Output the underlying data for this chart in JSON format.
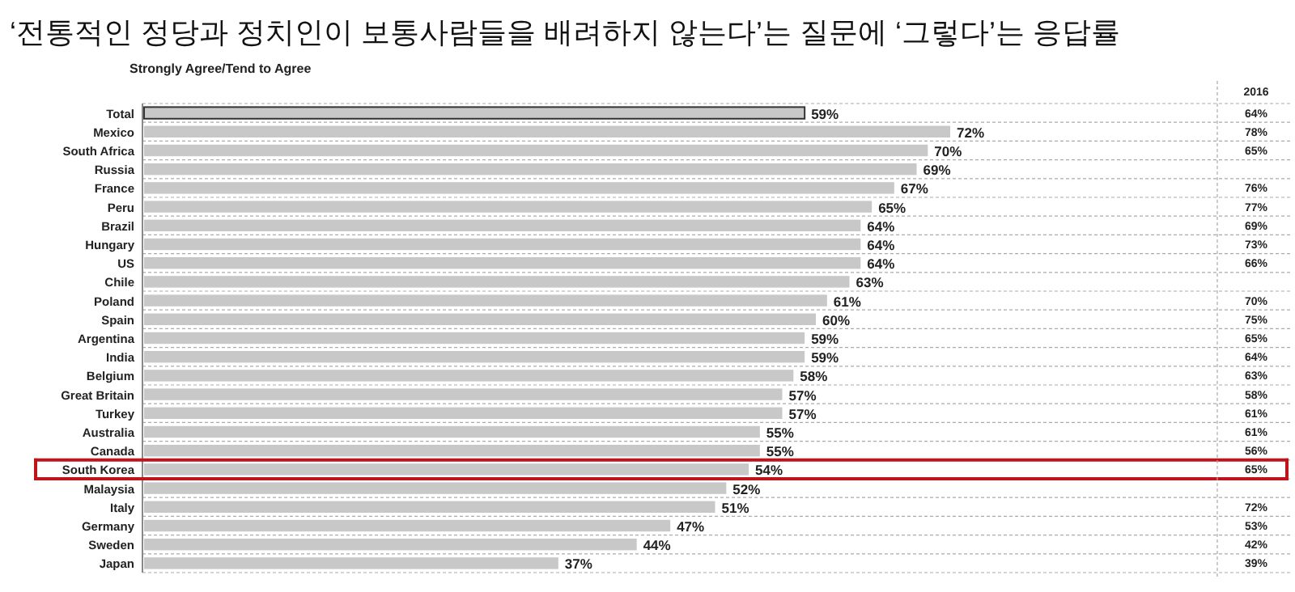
{
  "chart_data": {
    "type": "bar",
    "orientation": "horizontal",
    "title": "‘전통적인 정당과 정치인이 보통사람들을 배려하지 않는다’는 질문에 ‘그렇다’는 응답률",
    "subtitle": "Strongly Agree/Tend to Agree",
    "categories": [
      "Total",
      "Mexico",
      "South Africa",
      "Russia",
      "France",
      "Peru",
      "Brazil",
      "Hungary",
      "US",
      "Chile",
      "Poland",
      "Spain",
      "Argentina",
      "India",
      "Belgium",
      "Great Britain",
      "Turkey",
      "Australia",
      "Canada",
      "South Korea",
      "Malaysia",
      "Italy",
      "Germany",
      "Sweden",
      "Japan"
    ],
    "values": [
      59,
      72,
      70,
      69,
      67,
      65,
      64,
      64,
      64,
      63,
      61,
      60,
      59,
      59,
      58,
      57,
      57,
      55,
      55,
      54,
      52,
      51,
      47,
      44,
      37
    ],
    "value_labels": [
      "59%",
      "72%",
      "70%",
      "69%",
      "67%",
      "65%",
      "64%",
      "64%",
      "64%",
      "63%",
      "61%",
      "60%",
      "59%",
      "59%",
      "58%",
      "57%",
      "57%",
      "55%",
      "55%",
      "54%",
      "52%",
      "51%",
      "47%",
      "44%",
      "37%"
    ],
    "color": "#c8c8c8",
    "xlim": [
      0,
      96
    ],
    "tick_labels": "y",
    "grid": "y",
    "annotations": [
      "2016",
      "64%",
      "78%",
      "65%",
      "76%",
      "77%",
      "69%",
      "73%",
      "66%",
      "70%",
      "75%",
      "65%",
      "64%",
      "63%",
      "58%",
      "61%",
      "61%",
      "56%",
      "65%",
      "72%",
      "53%",
      "42%",
      "39%"
    ]
  }
}
